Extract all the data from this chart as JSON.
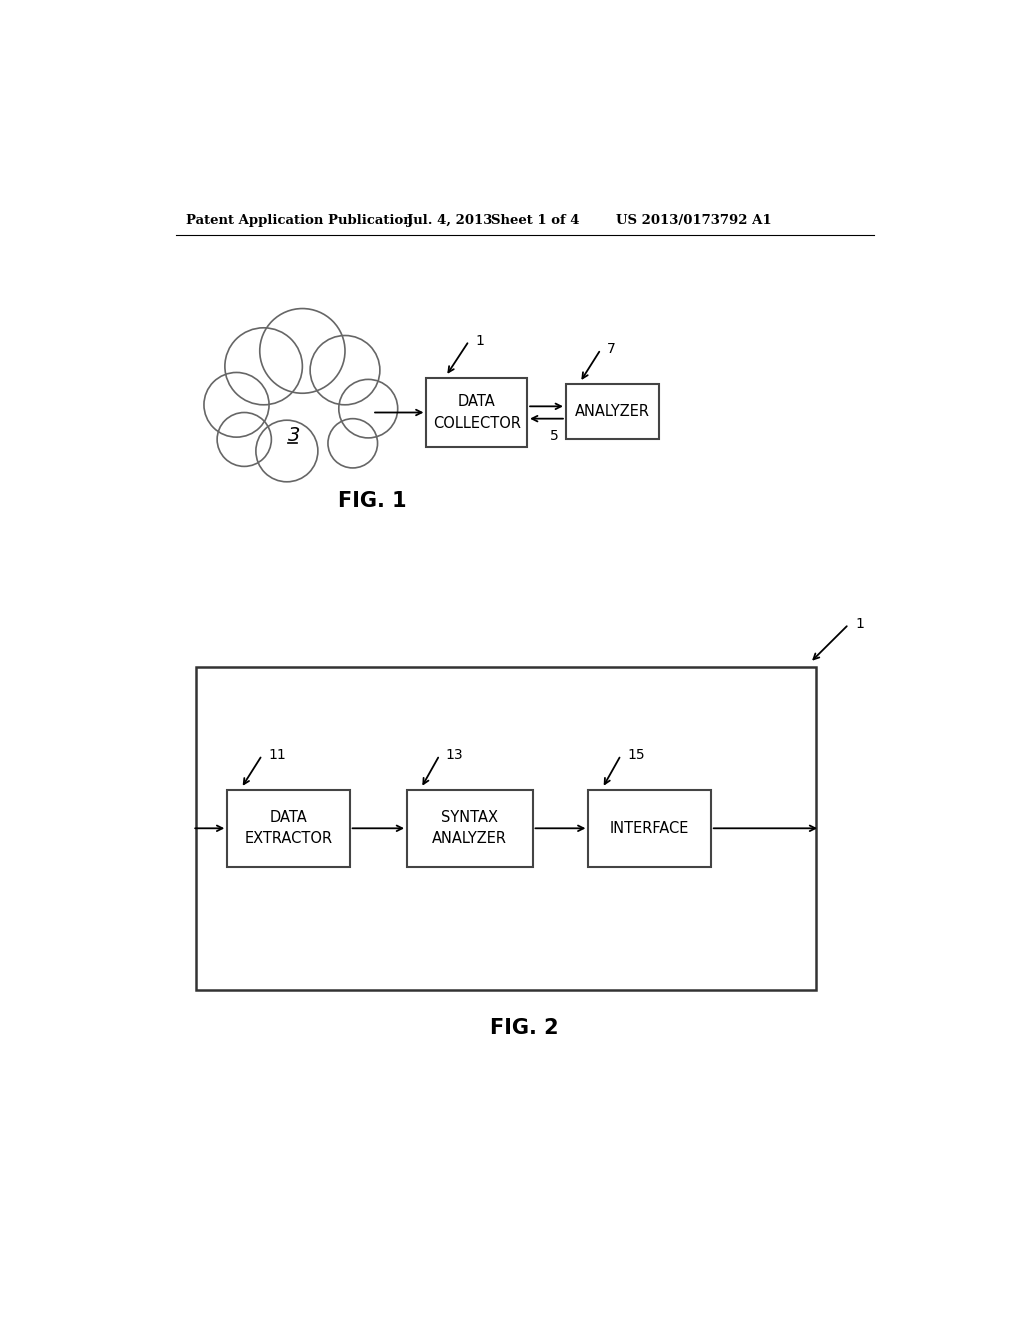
{
  "bg_color": "#ffffff",
  "header_text": "Patent Application Publication",
  "header_date": "Jul. 4, 2013",
  "header_sheet": "Sheet 1 of 4",
  "header_patent": "US 2013/0173792 A1",
  "fig1_caption": "FIG. 1",
  "fig2_caption": "FIG. 2",
  "cloud_label": "3",
  "dc_label": "DATA\nCOLLECTOR",
  "dc_ref": "1",
  "analyzer_label": "ANALYZER",
  "analyzer_ref": "7",
  "link_ref": "5",
  "outer_box_ref": "1",
  "de_label": "DATA\nEXTRACTOR",
  "de_ref": "11",
  "sa_label": "SYNTAX\nANALYZER",
  "sa_ref": "13",
  "iface_label": "INTERFACE",
  "iface_ref": "15"
}
